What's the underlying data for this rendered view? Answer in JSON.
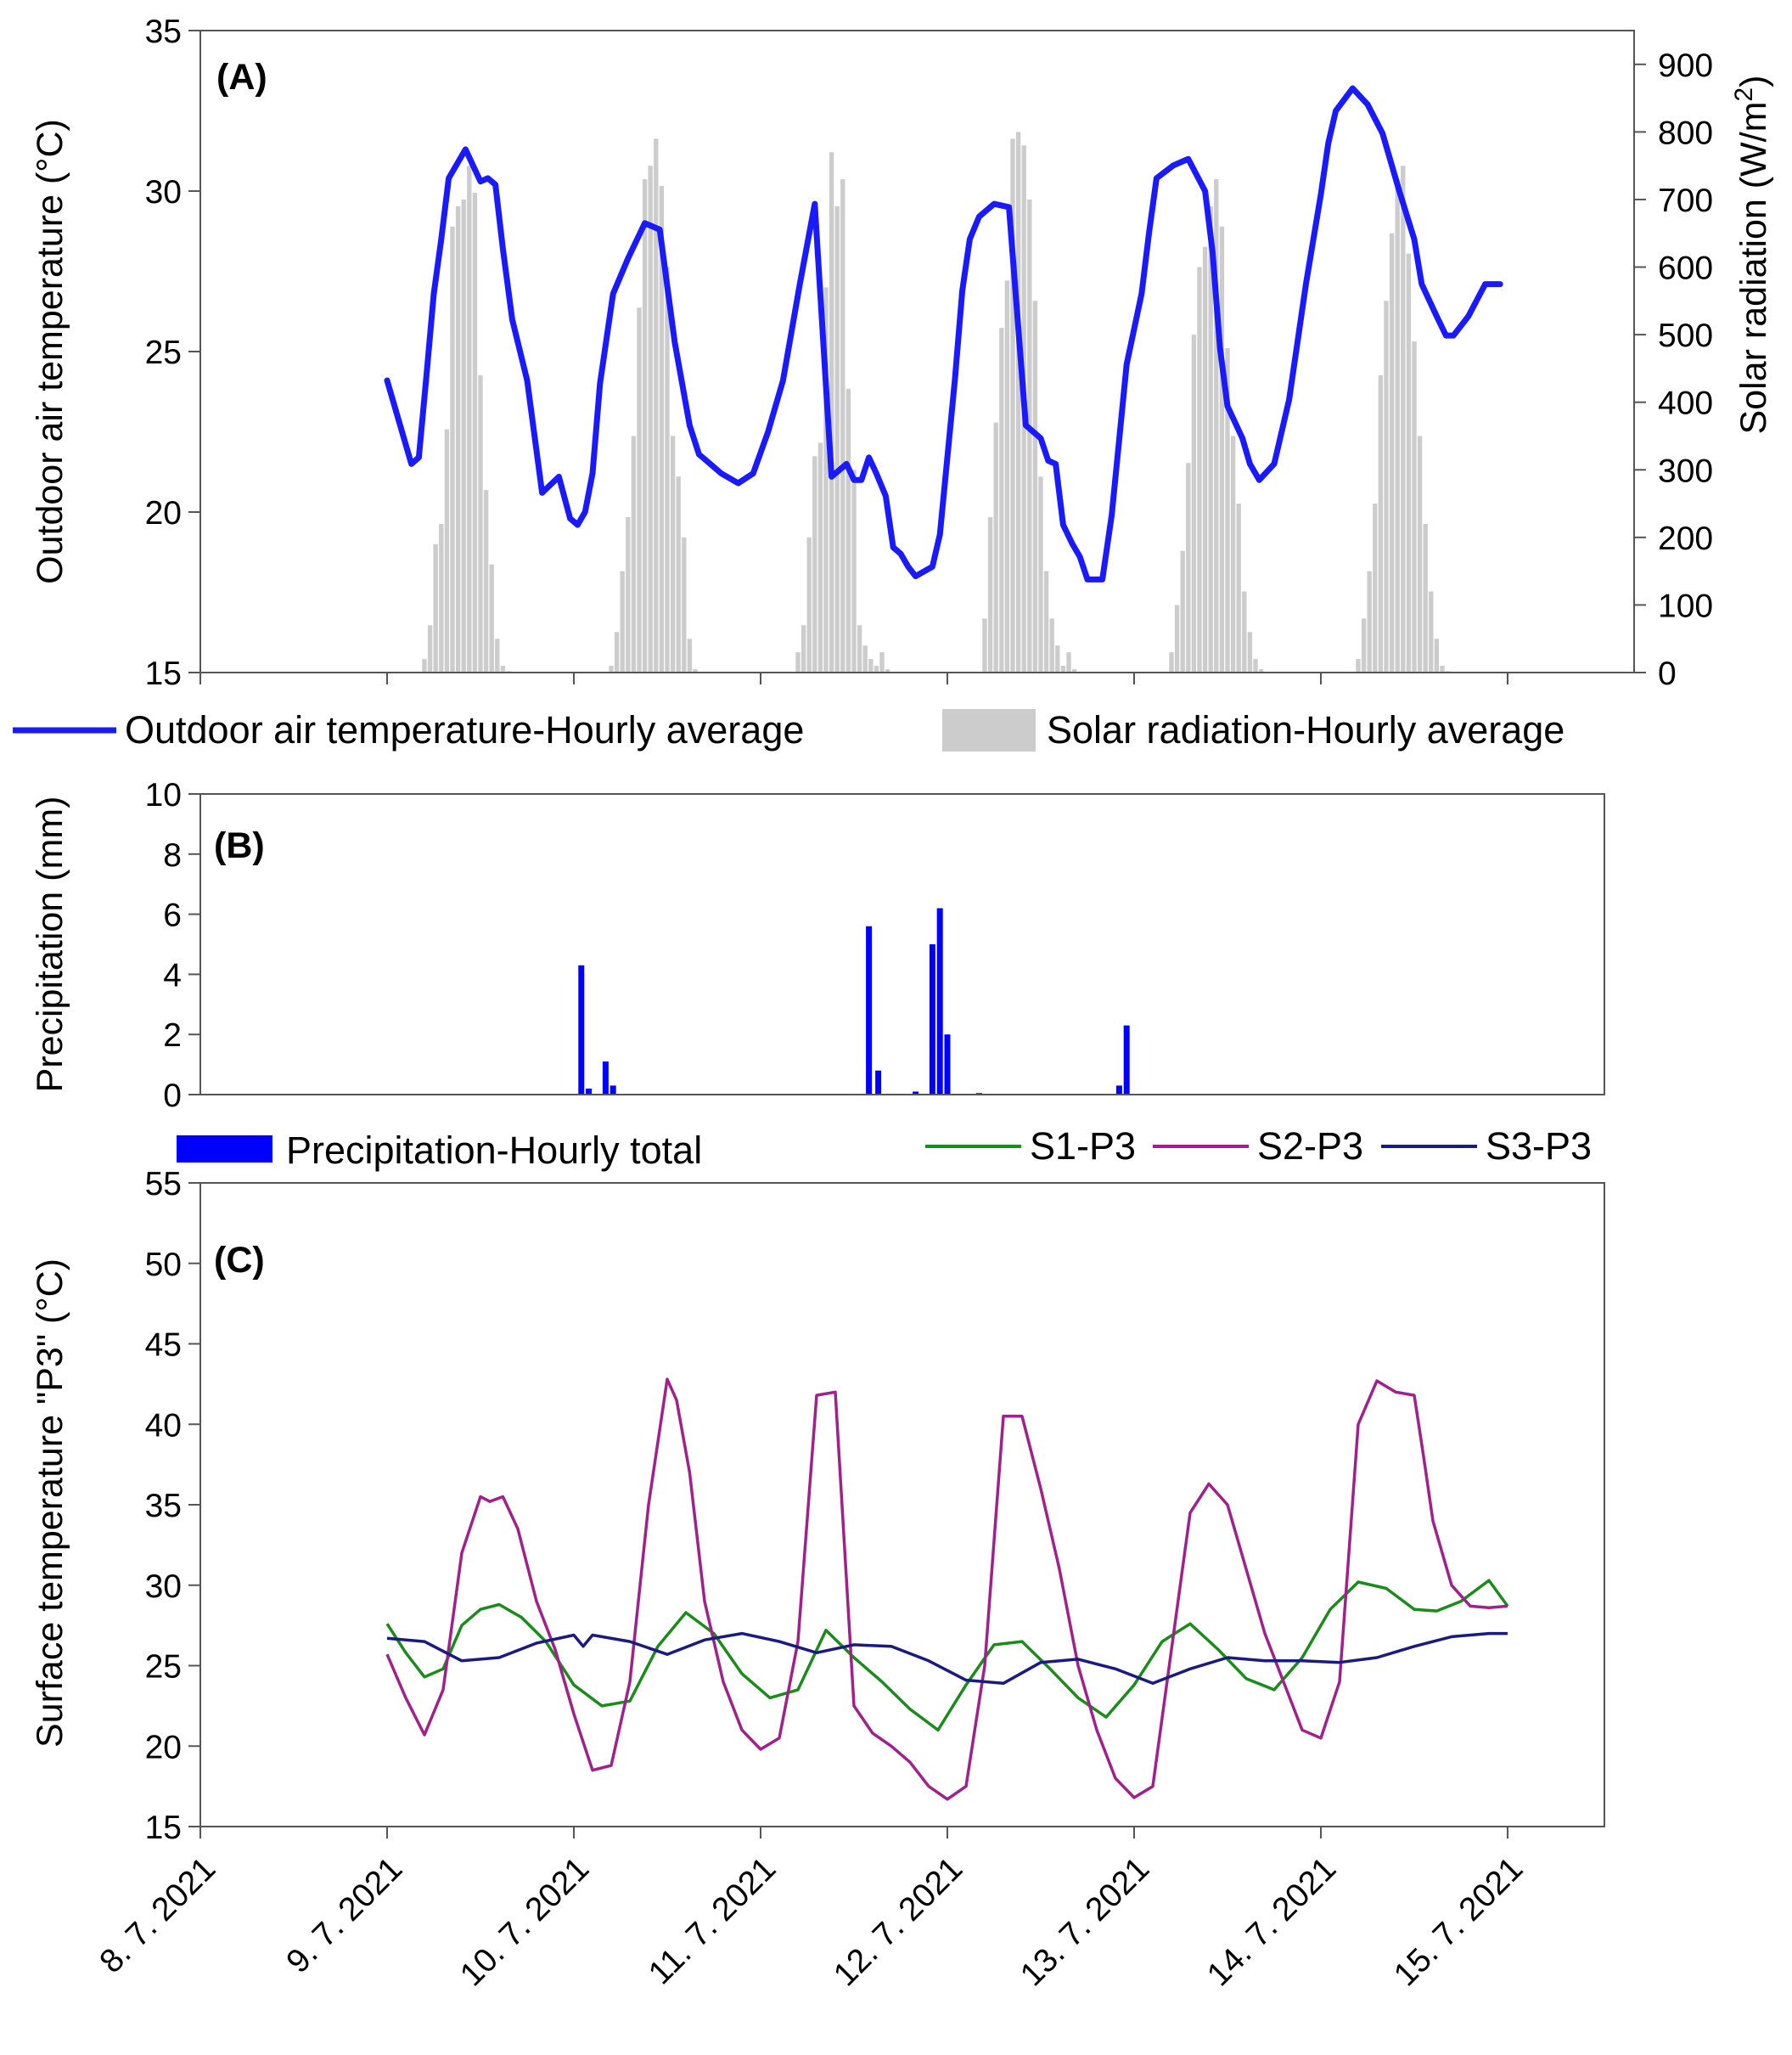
{
  "chart_data": [
    {
      "panel": "(A)",
      "type": "line",
      "x_ticks": [
        "8. 7. 2021",
        "9. 7. 2021",
        "10. 7. 2021",
        "11. 7. 2021",
        "12. 7. 2021",
        "13. 7. 2021",
        "14. 7. 2021",
        "15. 7. 2021"
      ],
      "ylabel": "Outdoor air temperature (°C)",
      "ylim": [
        15,
        35
      ],
      "yticks": [
        "15",
        "20",
        "25",
        "30",
        "35"
      ],
      "y2label": "Solar radiation (W/m²)",
      "y2label_main": "Solar radiation (W/m",
      "y2label_sup": "2",
      "y2label_end": ")",
      "y2lim": [
        0,
        950
      ],
      "y2ticks": [
        "0",
        "100",
        "200",
        "300",
        "400",
        "500",
        "600",
        "700",
        "800",
        "900"
      ],
      "legend": [
        "Outdoor air temperature-Hourly average",
        "Solar radiation-Hourly average"
      ],
      "series": [
        {
          "name": "Outdoor air temperature-Hourly average",
          "axis": "left",
          "color": "#1a1aff",
          "days": [
            1.0,
            1.13,
            1.17,
            1.21,
            1.25,
            1.29,
            1.33,
            1.42,
            1.5,
            1.54,
            1.58,
            1.62,
            1.67,
            1.75,
            1.83,
            1.92,
            1.98,
            2.02,
            2.06,
            2.1,
            2.14,
            2.21,
            2.29,
            2.38,
            2.46,
            2.54,
            2.62,
            2.67,
            2.71,
            2.79,
            2.88,
            2.96,
            3.04,
            3.12,
            3.21,
            3.29,
            3.38,
            3.46,
            3.5,
            3.54,
            3.58,
            3.62,
            3.67,
            3.71,
            3.75,
            3.79,
            3.83,
            3.92,
            3.96,
            4.04,
            4.08,
            4.12,
            4.17,
            4.25,
            4.33,
            4.42,
            4.5,
            4.54,
            4.58,
            4.62,
            4.67,
            4.71,
            4.75,
            4.83,
            4.88,
            4.96,
            5.04,
            5.08,
            5.12,
            5.21,
            5.29,
            5.38,
            5.42,
            5.46,
            5.5,
            5.58,
            5.62,
            5.67,
            5.75,
            5.83,
            5.92,
            6.0,
            6.04,
            6.08,
            6.17,
            6.25,
            6.33,
            6.42,
            6.5,
            6.54,
            6.62,
            6.67,
            6.71,
            6.79,
            6.88,
            6.96
          ],
          "values": [
            24.1,
            21.5,
            21.7,
            24.2,
            26.8,
            28.5,
            30.4,
            31.3,
            30.3,
            30.4,
            30.2,
            28.2,
            26.0,
            24.1,
            20.6,
            21.1,
            19.8,
            19.6,
            20.0,
            21.2,
            24.0,
            26.8,
            27.9,
            29.0,
            28.8,
            25.3,
            22.7,
            21.8,
            21.6,
            21.2,
            20.9,
            21.2,
            22.5,
            24.1,
            27.1,
            29.6,
            21.1,
            21.5,
            21.0,
            21.0,
            21.7,
            21.2,
            20.5,
            18.9,
            18.7,
            18.3,
            18.0,
            18.3,
            19.3,
            24.1,
            26.9,
            28.5,
            29.2,
            29.6,
            29.5,
            22.7,
            22.3,
            21.6,
            21.5,
            19.6,
            19.0,
            18.6,
            17.9,
            17.9,
            19.9,
            24.6,
            26.8,
            28.7,
            30.4,
            30.8,
            31.0,
            30.0,
            28.1,
            25.1,
            23.3,
            22.3,
            21.5,
            21.0,
            21.5,
            23.5,
            27.1,
            29.9,
            31.5,
            32.5,
            33.2,
            32.7,
            31.8,
            30.0,
            28.5,
            27.1,
            26.1,
            25.5,
            25.5,
            26.1,
            27.1,
            27.1
          ]
        },
        {
          "name": "Solar radiation-Hourly average",
          "axis": "right",
          "type": "bar",
          "color": "#cccccc",
          "days": [
            1.2,
            1.23,
            1.26,
            1.29,
            1.32,
            1.35,
            1.38,
            1.41,
            1.44,
            1.47,
            1.5,
            1.53,
            1.56,
            1.59,
            1.62,
            1.65,
            2.2,
            2.23,
            2.26,
            2.29,
            2.32,
            2.35,
            2.38,
            2.41,
            2.44,
            2.47,
            2.5,
            2.53,
            2.56,
            2.59,
            2.62,
            2.65,
            3.2,
            3.23,
            3.26,
            3.29,
            3.32,
            3.35,
            3.38,
            3.41,
            3.44,
            3.47,
            3.5,
            3.53,
            3.56,
            3.59,
            3.62,
            3.65,
            3.68,
            4.2,
            4.23,
            4.26,
            4.29,
            4.32,
            4.35,
            4.38,
            4.41,
            4.44,
            4.47,
            4.5,
            4.53,
            4.56,
            4.59,
            4.62,
            4.65,
            4.68,
            5.2,
            5.23,
            5.26,
            5.29,
            5.32,
            5.35,
            5.38,
            5.41,
            5.44,
            5.47,
            5.5,
            5.53,
            5.56,
            5.59,
            5.62,
            5.65,
            5.68,
            6.2,
            6.23,
            6.26,
            6.29,
            6.32,
            6.35,
            6.38,
            6.41,
            6.44,
            6.47,
            6.5,
            6.53,
            6.56,
            6.59,
            6.62,
            6.65,
            6.68
          ],
          "values": [
            20,
            70,
            190,
            220,
            360,
            660,
            690,
            700,
            750,
            710,
            440,
            270,
            160,
            50,
            10,
            2,
            10,
            60,
            150,
            230,
            350,
            540,
            730,
            750,
            790,
            720,
            600,
            350,
            290,
            200,
            50,
            5,
            30,
            70,
            200,
            320,
            340,
            570,
            770,
            690,
            730,
            420,
            300,
            70,
            40,
            20,
            10,
            30,
            5,
            80,
            230,
            370,
            510,
            580,
            790,
            800,
            780,
            700,
            550,
            290,
            150,
            80,
            40,
            10,
            30,
            5,
            30,
            100,
            180,
            310,
            500,
            600,
            630,
            690,
            730,
            660,
            480,
            350,
            250,
            120,
            60,
            20,
            5,
            20,
            80,
            150,
            250,
            440,
            550,
            650,
            730,
            750,
            620,
            490,
            350,
            220,
            120,
            50,
            10,
            2
          ]
        }
      ]
    },
    {
      "panel": "(B)",
      "type": "bar",
      "ylabel": "Precipitation (mm)",
      "ylim": [
        0,
        10
      ],
      "yticks": [
        "0",
        "2",
        "4",
        "6",
        "8",
        "10"
      ],
      "legend": [
        "Precipitation-Hourly total"
      ],
      "series": [
        {
          "name": "Precipitation-Hourly total",
          "color": "#0000ff",
          "days": [
            2.04,
            2.08,
            2.17,
            2.21,
            3.58,
            3.63,
            3.83,
            3.92,
            3.96,
            4.0,
            4.17,
            4.92,
            4.96
          ],
          "values": [
            4.3,
            0.2,
            1.1,
            0.3,
            5.6,
            0.8,
            0.1,
            5.0,
            6.2,
            2.0,
            0.05,
            0.3,
            2.3
          ]
        }
      ]
    },
    {
      "panel": "(C)",
      "type": "line",
      "ylabel": "Surface temperature \"P3\" (°C)",
      "ylim": [
        15,
        55
      ],
      "yticks": [
        "15",
        "20",
        "25",
        "30",
        "35",
        "40",
        "45",
        "50",
        "55"
      ],
      "legend": [
        "S1-P3",
        "S2-P3",
        "S3-P3"
      ],
      "series": [
        {
          "name": "S1-P3",
          "color": "#1a8c1a",
          "days": [
            1.0,
            1.1,
            1.2,
            1.3,
            1.4,
            1.5,
            1.6,
            1.72,
            1.85,
            2.0,
            2.15,
            2.3,
            2.45,
            2.6,
            2.75,
            2.9,
            3.05,
            3.2,
            3.35,
            3.5,
            3.65,
            3.8,
            3.95,
            4.1,
            4.25,
            4.4,
            4.55,
            4.7,
            4.85,
            5.0,
            5.15,
            5.3,
            5.45,
            5.6,
            5.75,
            5.9,
            6.05,
            6.2,
            6.35,
            6.5,
            6.62,
            6.75,
            6.9,
            7.0
          ],
          "values": [
            27.6,
            25.8,
            24.3,
            24.8,
            27.5,
            28.5,
            28.8,
            28.0,
            26.5,
            23.8,
            22.5,
            22.8,
            26.2,
            28.3,
            27.0,
            24.5,
            23.0,
            23.5,
            27.2,
            25.5,
            24.0,
            22.3,
            21.0,
            23.8,
            26.3,
            26.5,
            24.8,
            23.0,
            21.8,
            23.8,
            26.5,
            27.6,
            26.0,
            24.2,
            23.5,
            25.5,
            28.5,
            30.2,
            29.8,
            28.5,
            28.4,
            29.0,
            30.3,
            28.7
          ],
          "note": "approximate readout"
        },
        {
          "name": "S2-P3",
          "color": "#a0208c",
          "days": [
            1.0,
            1.1,
            1.2,
            1.3,
            1.4,
            1.5,
            1.55,
            1.62,
            1.7,
            1.8,
            1.9,
            2.0,
            2.1,
            2.2,
            2.3,
            2.4,
            2.5,
            2.55,
            2.62,
            2.7,
            2.8,
            2.9,
            3.0,
            3.1,
            3.2,
            3.3,
            3.4,
            3.5,
            3.6,
            3.7,
            3.8,
            3.9,
            4.0,
            4.1,
            4.2,
            4.3,
            4.4,
            4.5,
            4.55,
            4.6,
            4.7,
            4.8,
            4.9,
            5.0,
            5.1,
            5.2,
            5.3,
            5.4,
            5.5,
            5.6,
            5.7,
            5.8,
            5.9,
            6.0,
            6.1,
            6.2,
            6.3,
            6.4,
            6.5,
            6.55,
            6.6,
            6.7,
            6.8,
            6.9,
            7.0
          ],
          "values": [
            25.7,
            23.0,
            20.7,
            23.5,
            32.0,
            35.5,
            35.2,
            35.5,
            33.5,
            29.0,
            26.0,
            22.0,
            18.5,
            18.8,
            24.0,
            35.0,
            42.8,
            41.5,
            37.0,
            29.0,
            24.0,
            21.0,
            19.8,
            20.5,
            26.5,
            41.8,
            42.0,
            22.5,
            20.8,
            20.0,
            19.0,
            17.5,
            16.7,
            17.5,
            25.0,
            40.5,
            40.5,
            36.0,
            33.5,
            31.0,
            25.0,
            21.0,
            18.0,
            16.8,
            17.5,
            26.0,
            34.5,
            36.3,
            35.0,
            31.0,
            27.0,
            24.0,
            21.0,
            20.5,
            24.0,
            40.0,
            42.7,
            42.0,
            41.8,
            38.0,
            34.0,
            30.0,
            28.7,
            28.6,
            28.7
          ],
          "note": "approximate readout"
        },
        {
          "name": "S3-P3",
          "color": "#1a1a80",
          "days": [
            1.0,
            1.2,
            1.4,
            1.6,
            1.8,
            2.0,
            2.05,
            2.1,
            2.3,
            2.5,
            2.7,
            2.9,
            3.1,
            3.3,
            3.5,
            3.7,
            3.9,
            4.1,
            4.3,
            4.5,
            4.7,
            4.9,
            5.1,
            5.3,
            5.5,
            5.7,
            5.9,
            6.1,
            6.3,
            6.5,
            6.7,
            6.9,
            7.0
          ],
          "values": [
            26.7,
            26.5,
            25.3,
            25.5,
            26.4,
            26.9,
            26.2,
            26.9,
            26.5,
            25.7,
            26.6,
            27.0,
            26.5,
            25.8,
            26.3,
            26.2,
            25.3,
            24.1,
            23.9,
            25.2,
            25.4,
            24.8,
            23.9,
            24.8,
            25.5,
            25.3,
            25.3,
            25.2,
            25.5,
            26.2,
            26.8,
            27.0,
            27.0
          ],
          "note": "approximate readout"
        }
      ]
    }
  ]
}
